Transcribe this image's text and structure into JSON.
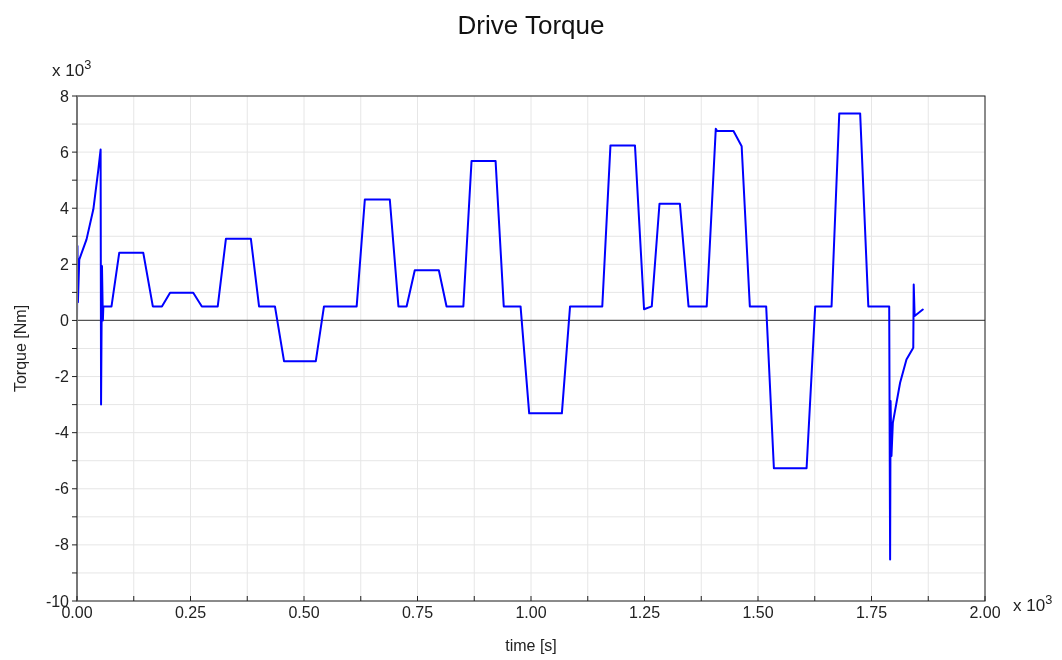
{
  "chart_data": {
    "type": "line",
    "title": "Drive Torque",
    "xlabel": "time [s]",
    "ylabel": "Torque [Nm]",
    "annotations": [
      "x 10$^{3}$",
      "x 10$^{3}$"
    ],
    "xlim": [
      0,
      2
    ],
    "ylim": [
      -10,
      8
    ],
    "xticks": [
      {
        "value": 0,
        "label": "0.00"
      },
      {
        "value": 0.125,
        "label": null
      },
      {
        "value": 0.25,
        "label": "0.25"
      },
      {
        "value": 0.375,
        "label": null
      },
      {
        "value": 0.5,
        "label": "0.50"
      },
      {
        "value": 0.625,
        "label": null
      },
      {
        "value": 0.75,
        "label": "0.75"
      },
      {
        "value": 0.875,
        "label": null
      },
      {
        "value": 1,
        "label": "1.00"
      },
      {
        "value": 1.125,
        "label": null
      },
      {
        "value": 1.25,
        "label": "1.25"
      },
      {
        "value": 1.375,
        "label": null
      },
      {
        "value": 1.5,
        "label": "1.50"
      },
      {
        "value": 1.625,
        "label": null
      },
      {
        "value": 1.75,
        "label": "1.75"
      },
      {
        "value": 1.875,
        "label": null
      },
      {
        "value": 2,
        "label": "2.00"
      }
    ],
    "yticks": [
      -10,
      {
        "value": -9,
        "label": null
      },
      -8,
      {
        "value": -7,
        "label": null
      },
      -6,
      {
        "value": -5,
        "label": null
      },
      -4,
      {
        "value": -3,
        "label": null
      },
      -2,
      {
        "value": -1,
        "label": null
      },
      0,
      {
        "value": 1,
        "label": null
      },
      2,
      {
        "value": 3,
        "label": null
      },
      4,
      {
        "value": 5,
        "label": null
      },
      6,
      {
        "value": 7,
        "label": null
      },
      8
    ],
    "grid": true,
    "marker": "none",
    "line_style": "solid",
    "ref_lines": [
      {
        "axis": "y",
        "value": 0,
        "color": "#555555"
      }
    ],
    "series": [
      {
        "color": "#0000ff",
        "x": [
          0,
          0.001,
          0.002,
          0.005,
          0.021,
          0.036,
          0.047,
          0.052,
          0.053,
          0.055,
          0.057,
          0.058,
          0.076,
          0.093,
          0.146,
          0.167,
          0.187,
          0.205,
          0.256,
          0.275,
          0.31,
          0.328,
          0.383,
          0.401,
          0.436,
          0.456,
          0.526,
          0.544,
          0.616,
          0.634,
          0.689,
          0.708,
          0.726,
          0.744,
          0.797,
          0.814,
          0.851,
          0.869,
          0.922,
          0.94,
          0.977,
          0.996,
          1.068,
          1.086,
          1.157,
          1.175,
          1.229,
          1.249,
          1.266,
          1.283,
          1.328,
          1.347,
          1.387,
          1.407,
          1.41,
          1.446,
          1.464,
          1.482,
          1.518,
          1.535,
          1.607,
          1.626,
          1.662,
          1.679,
          1.725,
          1.743,
          1.789,
          1.791,
          1.792,
          1.794,
          1.797,
          1.813,
          1.827,
          1.842,
          1.843,
          1.845,
          1.863
        ],
        "values": [
          0,
          2.65,
          0.65,
          2.17,
          2.89,
          3.96,
          5.38,
          6.09,
          -3.0,
          1.94,
          0,
          0.5,
          0.5,
          2.41,
          2.41,
          0.5,
          0.5,
          0.99,
          0.99,
          0.5,
          0.5,
          2.91,
          2.91,
          0.5,
          0.5,
          -1.45,
          -1.45,
          0.5,
          0.5,
          4.31,
          4.31,
          0.5,
          0.5,
          1.79,
          1.79,
          0.5,
          0.5,
          5.68,
          5.68,
          0.5,
          0.5,
          -3.31,
          -3.31,
          0.5,
          0.5,
          6.24,
          6.24,
          0.4,
          0.5,
          4.16,
          4.16,
          0.5,
          0.5,
          6.83,
          6.75,
          6.75,
          6.21,
          0.5,
          0.5,
          -5.27,
          -5.27,
          0.5,
          0.5,
          7.38,
          7.38,
          0.5,
          0.5,
          -8.52,
          -2.87,
          -4.83,
          -3.65,
          -2.22,
          -1.39,
          -0.97,
          1.28,
          0.16,
          0.39
        ]
      }
    ]
  }
}
